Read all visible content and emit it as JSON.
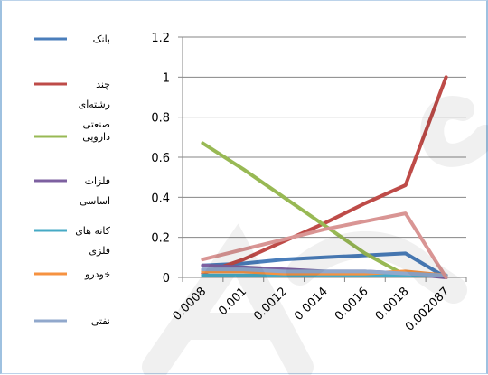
{
  "chart_data": {
    "type": "line",
    "title": "",
    "xlabel": "",
    "ylabel": "",
    "categories": [
      "0.0008",
      "0.001",
      "0.0012",
      "0.0014",
      "0.0016",
      "0.0018",
      "0.002087"
    ],
    "ylim": [
      0,
      1.2
    ],
    "yticks": [
      "0",
      "0.2",
      "0.4",
      "0.6",
      "0.8",
      "1",
      "1.2"
    ],
    "grid": "horizontal",
    "legend_position": "left",
    "series": [
      {
        "name": "بانک",
        "color": "#4a7ebb",
        "values": [
          0.06,
          0.07,
          0.09,
          0.1,
          0.11,
          0.12,
          0.0
        ]
      },
      {
        "name": "چند رشته‌ای صنعتی",
        "color": "#be4b48",
        "values": [
          0.02,
          0.09,
          0.18,
          0.27,
          0.37,
          0.46,
          1.0
        ]
      },
      {
        "name": "دارویی",
        "color": "#98b954",
        "values": [
          0.67,
          0.54,
          0.4,
          0.26,
          0.12,
          0.01,
          0.01
        ]
      },
      {
        "name": "فلزات اساسی",
        "color": "#7d60a0",
        "values": [
          0.06,
          0.05,
          0.04,
          0.03,
          0.03,
          0.02,
          0.0
        ]
      },
      {
        "name": "کانه های فلزی",
        "color": "#46aac5",
        "values": [
          0.01,
          0.01,
          0.01,
          0.01,
          0.01,
          0.01,
          0.01
        ]
      },
      {
        "name": "خودرو",
        "color": "#f69240",
        "values": [
          0.03,
          0.03,
          0.02,
          0.02,
          0.02,
          0.03,
          0.01
        ]
      },
      {
        "name": "نفتی",
        "color": "#91a8cc",
        "values": [
          0.04,
          0.04,
          0.03,
          0.03,
          0.03,
          0.02,
          0.01
        ]
      },
      {
        "name": "",
        "color": "#d99594",
        "values": [
          0.09,
          0.14,
          0.19,
          0.24,
          0.28,
          0.32,
          0.0
        ]
      }
    ],
    "legend_lines": [
      {
        "series": 0,
        "lines": [
          "بانک"
        ]
      },
      {
        "series": 1,
        "lines": [
          "چند",
          "رشته‌ای",
          "صنعتی"
        ]
      },
      {
        "series": 2,
        "lines": [
          "دارویی"
        ]
      },
      {
        "series": 3,
        "lines": [
          "فلزات",
          "اساسی"
        ]
      },
      {
        "series": 4,
        "lines": [
          "کانه های",
          "فلزی"
        ]
      },
      {
        "series": 5,
        "lines": [
          "خودرو"
        ]
      },
      {
        "series": 6,
        "lines": [
          "نفتی"
        ]
      }
    ]
  }
}
